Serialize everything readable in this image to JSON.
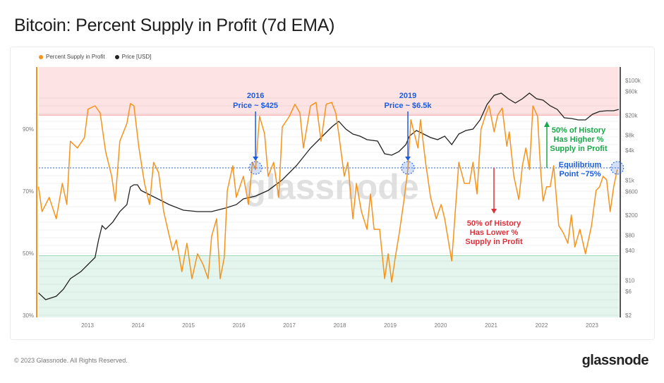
{
  "title": "Bitcoin: Percent Supply in Profit (7d EMA)",
  "footer": "© 2023 Glassnode. All Rights Reserved.",
  "logo": "glassnode",
  "watermark": "glassnode",
  "colors": {
    "profit": "#f7931a",
    "price": "#222222",
    "red_zone": "#fde3e3",
    "green_zone": "#e3f5ec",
    "equilibrium": "#3366dd",
    "annotation_blue": "#1a5ce0",
    "annotation_green": "#1aa84a",
    "annotation_red": "#e0303a"
  },
  "chart_data": {
    "type": "line",
    "title": "Bitcoin: Percent Supply in Profit (7d EMA)",
    "legend": [
      "Percent Supply in Profit",
      "Price [USD]"
    ],
    "legend_position": "top-left",
    "xlim": [
      2012.03,
      2023.53
    ],
    "x_ticks": [
      "2013",
      "2014",
      "2015",
      "2016",
      "2017",
      "2018",
      "2019",
      "2020",
      "2021",
      "2022",
      "2023"
    ],
    "y_left": {
      "ylim": [
        30,
        101
      ],
      "ticks": [
        "30%",
        "50%",
        "70%",
        "90%"
      ],
      "tick_values": [
        30,
        50,
        70,
        90
      ]
    },
    "y_right": {
      "scale": "log",
      "ylim": [
        2,
        200000
      ],
      "ticks": [
        "$100k",
        "$60k",
        "$20k",
        "$8k",
        "$4k",
        "$1k",
        "$600",
        "$200",
        "$80",
        "$40",
        "$10",
        "$6",
        "$2"
      ],
      "tick_values": [
        100000,
        60000,
        20000,
        8000,
        4000,
        1000,
        600,
        200,
        80,
        40,
        10,
        6,
        2
      ]
    },
    "zones": {
      "red_above": 94.5,
      "green_below": 49.2,
      "equilibrium": 77.5
    },
    "series": [
      {
        "name": "Percent Supply in Profit",
        "axis": "left",
        "x": [
          2012.03,
          2012.1,
          2012.24,
          2012.38,
          2012.5,
          2012.59,
          2012.66,
          2012.8,
          2012.94,
          2013.01,
          2013.15,
          2013.25,
          2013.36,
          2013.48,
          2013.55,
          2013.64,
          2013.78,
          2013.85,
          2013.92,
          2014.02,
          2014.13,
          2014.23,
          2014.31,
          2014.41,
          2014.51,
          2014.59,
          2014.69,
          2014.76,
          2014.87,
          2014.97,
          2015.07,
          2015.18,
          2015.29,
          2015.39,
          2015.46,
          2015.56,
          2015.63,
          2015.71,
          2015.77,
          2015.88,
          2015.95,
          2016.09,
          2016.19,
          2016.27,
          2016.33,
          2016.41,
          2016.51,
          2016.58,
          2016.69,
          2016.79,
          2016.86,
          2017.0,
          2017.11,
          2017.21,
          2017.28,
          2017.42,
          2017.53,
          2017.63,
          2017.73,
          2017.84,
          2017.92,
          2017.98,
          2018.09,
          2018.16,
          2018.26,
          2018.33,
          2018.43,
          2018.54,
          2018.61,
          2018.68,
          2018.79,
          2018.89,
          2018.96,
          2019.03,
          2019.1,
          2019.18,
          2019.27,
          2019.35,
          2019.41,
          2019.48,
          2019.55,
          2019.6,
          2019.7,
          2019.8,
          2019.91,
          2020.01,
          2020.08,
          2020.22,
          2020.29,
          2020.36,
          2020.47,
          2020.57,
          2020.64,
          2020.72,
          2020.8,
          2020.89,
          2020.96,
          2021.06,
          2021.13,
          2021.22,
          2021.31,
          2021.36,
          2021.45,
          2021.55,
          2021.62,
          2021.69,
          2021.76,
          2021.83,
          2021.92,
          2021.98,
          2022.03,
          2022.1,
          2022.17,
          2022.24,
          2022.34,
          2022.43,
          2022.52,
          2022.59,
          2022.66,
          2022.76,
          2022.87,
          2022.99,
          2023.08,
          2023.15,
          2023.22,
          2023.29,
          2023.36,
          2023.43,
          2023.5
        ],
        "y": [
          71.4,
          63.4,
          68.0,
          61.1,
          72.5,
          65.7,
          86.1,
          83.9,
          87.3,
          96.4,
          97.5,
          95.2,
          82.7,
          74.8,
          66.8,
          86.1,
          91.8,
          98.2,
          97.5,
          83.9,
          72.5,
          65.7,
          79.3,
          75.9,
          63.4,
          57.7,
          50.9,
          54.3,
          44.1,
          53.2,
          41.8,
          49.8,
          46.4,
          41.8,
          55.5,
          61.1,
          41.8,
          48.6,
          70.2,
          78.2,
          68.0,
          74.8,
          65.7,
          79.3,
          77.0,
          94.1,
          88.4,
          74.8,
          79.3,
          68.0,
          90.7,
          94.1,
          98.0,
          95.2,
          83.9,
          97.5,
          98.6,
          86.1,
          98.0,
          98.6,
          95.2,
          88.4,
          74.8,
          79.3,
          61.1,
          72.5,
          63.4,
          57.7,
          69.1,
          57.7,
          57.7,
          41.8,
          49.8,
          40.7,
          48.6,
          56.6,
          66.8,
          77.0,
          93.0,
          88.4,
          83.9,
          93.0,
          79.3,
          68.0,
          61.1,
          65.7,
          61.1,
          47.5,
          63.4,
          79.3,
          72.5,
          72.5,
          79.3,
          69.1,
          90.0,
          94.5,
          97.5,
          89.1,
          94.5,
          96.8,
          84.5,
          89.1,
          74.8,
          67.3,
          78.2,
          83.9,
          77.0,
          97.5,
          94.1,
          77.0,
          66.8,
          71.4,
          71.4,
          78.2,
          58.9,
          56.6,
          53.2,
          62.3,
          52.0,
          57.7,
          49.8,
          58.9,
          70.2,
          71.4,
          74.8,
          73.6,
          63.4,
          71.4,
          77.0
        ]
      },
      {
        "name": "Price [USD]",
        "axis": "right",
        "x": [
          2012.03,
          2012.17,
          2012.38,
          2012.52,
          2012.66,
          2012.87,
          2013.01,
          2013.15,
          2013.22,
          2013.29,
          2013.36,
          2013.5,
          2013.64,
          2013.78,
          2013.85,
          2013.92,
          2013.99,
          2014.06,
          2014.2,
          2014.34,
          2014.48,
          2014.62,
          2014.9,
          2015.18,
          2015.46,
          2015.74,
          2015.95,
          2016.09,
          2016.33,
          2016.58,
          2016.86,
          2017.14,
          2017.42,
          2017.63,
          2017.84,
          2017.98,
          2018.12,
          2018.26,
          2018.4,
          2018.54,
          2018.75,
          2018.89,
          2019.03,
          2019.17,
          2019.31,
          2019.38,
          2019.52,
          2019.66,
          2019.8,
          2019.94,
          2020.08,
          2020.22,
          2020.36,
          2020.5,
          2020.64,
          2020.78,
          2020.92,
          2021.06,
          2021.2,
          2021.34,
          2021.48,
          2021.62,
          2021.76,
          2021.9,
          2022.03,
          2022.17,
          2022.31,
          2022.45,
          2022.59,
          2022.73,
          2022.87,
          2023.01,
          2023.15,
          2023.29,
          2023.43,
          2023.53
        ],
        "y": [
          5.6,
          4.1,
          4.8,
          6.6,
          10.8,
          15,
          20.7,
          28.7,
          64.6,
          124,
          105,
          146,
          237,
          327,
          738,
          813,
          813,
          627,
          534,
          453,
          385,
          327,
          253,
          237,
          237,
          279,
          327,
          425,
          484,
          627,
          1021,
          1954,
          4406,
          7170,
          11670,
          15140,
          10590,
          8440,
          7640,
          6500,
          6100,
          3400,
          3180,
          3740,
          5180,
          7640,
          9910,
          8440,
          7170,
          6500,
          7640,
          5180,
          8440,
          9910,
          10590,
          16150,
          33000,
          50200,
          55500,
          42800,
          35200,
          42800,
          55500,
          42800,
          40100,
          30900,
          26200,
          17800,
          17200,
          16150,
          16150,
          20900,
          23800,
          24600,
          24600,
          26200
        ]
      }
    ],
    "annotations": [
      {
        "lines": [
          "2016",
          "Price ~ $425"
        ],
        "x": 2016.33,
        "y": 77.5
      },
      {
        "lines": [
          "2019",
          "Price ~ $6.5k"
        ],
        "x": 2019.35,
        "y": 77.5
      },
      {
        "lines": [
          "Equilibrium",
          "Point ~75%"
        ],
        "x": 2023.5,
        "y": 77.5
      },
      {
        "lines": [
          "50% of History",
          "Has Higher %",
          "Supply in Profit"
        ]
      },
      {
        "lines": [
          "50% of History",
          "Has Lower %",
          "Supply in Profit"
        ]
      }
    ]
  }
}
